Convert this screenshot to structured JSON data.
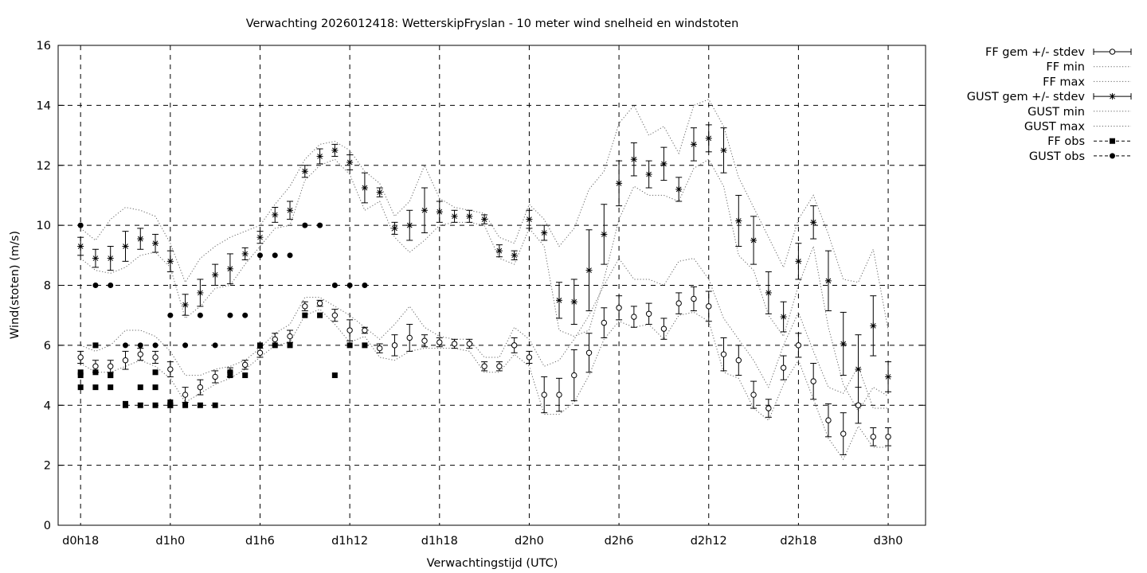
{
  "chart_data": {
    "type": "line",
    "title": "Verwachting 2026012418: WetterskipFryslan - 10 meter wind snelheid en windstoten",
    "xlabel": "Verwachtingstijd (UTC)",
    "ylabel": "Wind(stoten) (m/s)",
    "xlim": [
      -1.5,
      56.5
    ],
    "ylim": [
      0,
      16
    ],
    "y_ticks": [
      0,
      2,
      4,
      6,
      8,
      10,
      12,
      14,
      16
    ],
    "x_ticks": [
      {
        "x": 0,
        "label": "d0h18"
      },
      {
        "x": 6,
        "label": "d1h0"
      },
      {
        "x": 12,
        "label": "d1h6"
      },
      {
        "x": 18,
        "label": "d1h12"
      },
      {
        "x": 24,
        "label": "d1h18"
      },
      {
        "x": 30,
        "label": "d2h0"
      },
      {
        "x": 36,
        "label": "d2h6"
      },
      {
        "x": 42,
        "label": "d2h12"
      },
      {
        "x": 48,
        "label": "d2h18"
      },
      {
        "x": 54,
        "label": "d3h0"
      }
    ],
    "grid": true,
    "legend_position": "top-right outside",
    "legend": [
      {
        "key": "ff_mean",
        "label": "FF gem +/- stdev"
      },
      {
        "key": "ff_min",
        "label": "FF min"
      },
      {
        "key": "ff_max",
        "label": "FF max"
      },
      {
        "key": "gust_mean",
        "label": "GUST gem +/- stdev"
      },
      {
        "key": "gust_min",
        "label": "GUST min"
      },
      {
        "key": "gust_max",
        "label": "GUST max"
      },
      {
        "key": "ff_obs",
        "label": "FF obs"
      },
      {
        "key": "gust_obs",
        "label": "GUST obs"
      }
    ],
    "ff_mean": {
      "x": [
        0,
        1,
        2,
        3,
        4,
        5,
        6,
        7,
        8,
        9,
        10,
        11,
        12,
        13,
        14,
        15,
        16,
        17,
        18,
        19,
        20,
        21,
        22,
        23,
        24,
        25,
        26,
        27,
        28,
        29,
        30,
        31,
        32,
        33,
        34,
        35,
        36,
        37,
        38,
        39,
        40,
        41,
        42,
        43,
        44,
        45,
        46,
        47,
        48,
        49,
        50,
        51,
        52,
        53,
        54
      ],
      "y": [
        5.6,
        5.3,
        5.3,
        5.5,
        5.7,
        5.6,
        5.2,
        4.35,
        4.6,
        4.95,
        5.1,
        5.35,
        5.75,
        6.2,
        6.3,
        7.3,
        7.4,
        7.0,
        6.5,
        6.5,
        5.9,
        6.0,
        6.25,
        6.15,
        6.1,
        6.05,
        6.05,
        5.3,
        5.3,
        6.0,
        5.6,
        4.35,
        4.35,
        5.0,
        5.75,
        6.75,
        7.25,
        6.95,
        7.05,
        6.55,
        7.4,
        7.55,
        7.3,
        5.7,
        5.5,
        4.35,
        3.9,
        5.25,
        6.0,
        4.8,
        3.5,
        3.05,
        4.0,
        2.95,
        2.95
      ],
      "sd": [
        0.2,
        0.2,
        0.2,
        0.3,
        0.2,
        0.2,
        0.25,
        0.25,
        0.25,
        0.2,
        0.15,
        0.15,
        0.15,
        0.2,
        0.2,
        0.15,
        0.1,
        0.2,
        0.35,
        0.1,
        0.15,
        0.35,
        0.45,
        0.2,
        0.15,
        0.15,
        0.15,
        0.15,
        0.15,
        0.25,
        0.2,
        0.6,
        0.55,
        0.85,
        0.65,
        0.5,
        0.4,
        0.35,
        0.35,
        0.35,
        0.35,
        0.4,
        0.5,
        0.55,
        0.5,
        0.45,
        0.3,
        0.4,
        0.4,
        0.6,
        0.55,
        0.7,
        0.6,
        0.3,
        0.3
      ]
    },
    "ff_min": {
      "x": [
        0,
        1,
        2,
        3,
        4,
        5,
        6,
        7,
        8,
        9,
        10,
        11,
        12,
        13,
        14,
        15,
        16,
        17,
        18,
        19,
        20,
        21,
        22,
        23,
        24,
        25,
        26,
        27,
        28,
        29,
        30,
        31,
        32,
        33,
        34,
        35,
        36,
        37,
        38,
        39,
        40,
        41,
        42,
        43,
        44,
        45,
        46,
        47,
        48,
        49,
        50,
        51,
        52,
        53,
        54
      ],
      "y": [
        5.4,
        5.1,
        5.1,
        5.3,
        5.5,
        5.3,
        4.9,
        4.1,
        4.4,
        4.7,
        4.9,
        5.2,
        5.6,
        6.0,
        6.1,
        7.0,
        7.2,
        6.7,
        6.1,
        6.3,
        5.6,
        5.5,
        5.8,
        5.9,
        5.9,
        5.9,
        5.8,
        5.1,
        5.1,
        5.7,
        5.3,
        3.7,
        3.7,
        4.1,
        5.0,
        6.2,
        6.8,
        6.6,
        6.7,
        6.2,
        7.0,
        7.1,
        6.8,
        5.1,
        4.9,
        3.9,
        3.5,
        4.7,
        5.5,
        4.2,
        2.9,
        2.2,
        3.3,
        2.6,
        2.6
      ]
    },
    "ff_max": {
      "x": [
        0,
        1,
        2,
        3,
        4,
        5,
        6,
        7,
        8,
        9,
        10,
        11,
        12,
        13,
        14,
        15,
        16,
        17,
        18,
        19,
        20,
        21,
        22,
        23,
        24,
        25,
        26,
        27,
        28,
        29,
        30,
        31,
        32,
        33,
        34,
        35,
        36,
        37,
        38,
        39,
        40,
        41,
        42,
        43,
        44,
        45,
        46,
        47,
        48,
        49,
        50,
        51,
        52,
        53,
        54
      ],
      "y": [
        6.0,
        5.8,
        6.0,
        6.5,
        6.5,
        6.3,
        5.8,
        5.0,
        5.0,
        5.2,
        5.3,
        5.5,
        5.9,
        6.4,
        6.7,
        7.6,
        7.6,
        7.3,
        7.0,
        6.6,
        6.2,
        6.7,
        7.3,
        6.6,
        6.3,
        6.2,
        6.2,
        5.6,
        5.6,
        6.6,
        6.2,
        5.3,
        5.5,
        6.2,
        7.0,
        8.0,
        8.9,
        8.2,
        8.2,
        8.0,
        8.8,
        8.9,
        8.2,
        6.9,
        6.2,
        5.5,
        4.6,
        6.0,
        7.1,
        5.8,
        4.6,
        4.4,
        5.3,
        3.9,
        3.9
      ]
    },
    "gust_mean": {
      "x": [
        0,
        1,
        2,
        3,
        4,
        5,
        6,
        7,
        8,
        9,
        10,
        11,
        12,
        13,
        14,
        15,
        16,
        17,
        18,
        19,
        20,
        21,
        22,
        23,
        24,
        25,
        26,
        27,
        28,
        29,
        30,
        31,
        32,
        33,
        34,
        35,
        36,
        37,
        38,
        39,
        40,
        41,
        42,
        43,
        44,
        45,
        46,
        47,
        48,
        49,
        50,
        51,
        52,
        53,
        54
      ],
      "y": [
        9.3,
        8.9,
        8.9,
        9.3,
        9.55,
        9.4,
        8.8,
        7.35,
        7.75,
        8.35,
        8.55,
        9.05,
        9.6,
        10.35,
        10.5,
        11.8,
        12.3,
        12.5,
        12.1,
        11.25,
        11.1,
        9.9,
        10.0,
        10.5,
        10.45,
        10.3,
        10.3,
        10.2,
        9.15,
        9.0,
        10.2,
        9.75,
        7.5,
        7.45,
        8.5,
        9.7,
        11.4,
        12.2,
        11.7,
        12.05,
        11.2,
        12.7,
        12.9,
        12.5,
        10.15,
        9.5,
        7.75,
        6.95,
        8.8,
        10.1,
        8.15,
        6.05,
        5.2,
        6.65,
        4.95
      ],
      "sd": [
        0.3,
        0.3,
        0.4,
        0.5,
        0.35,
        0.3,
        0.35,
        0.35,
        0.45,
        0.35,
        0.5,
        0.2,
        0.2,
        0.25,
        0.3,
        0.2,
        0.25,
        0.2,
        0.25,
        0.5,
        0.15,
        0.2,
        0.5,
        0.75,
        0.35,
        0.2,
        0.2,
        0.15,
        0.2,
        0.15,
        0.3,
        0.25,
        0.6,
        0.75,
        1.35,
        1.0,
        0.75,
        0.55,
        0.45,
        0.55,
        0.4,
        0.55,
        0.45,
        0.75,
        0.85,
        0.8,
        0.7,
        0.5,
        0.6,
        0.55,
        1.0,
        1.05,
        1.15,
        1.0,
        0.5
      ]
    },
    "gust_min": {
      "x": [
        0,
        1,
        2,
        3,
        4,
        5,
        6,
        7,
        8,
        9,
        10,
        11,
        12,
        13,
        14,
        15,
        16,
        17,
        18,
        19,
        20,
        21,
        22,
        23,
        24,
        25,
        26,
        27,
        28,
        29,
        30,
        31,
        32,
        33,
        34,
        35,
        36,
        37,
        38,
        39,
        40,
        41,
        42,
        43,
        44,
        45,
        46,
        47,
        48,
        49,
        50,
        51,
        52,
        53,
        54
      ],
      "y": [
        8.9,
        8.5,
        8.4,
        8.6,
        9.0,
        9.1,
        8.6,
        6.9,
        7.3,
        7.9,
        8.0,
        8.7,
        9.3,
        9.9,
        10.0,
        11.5,
        12.0,
        12.2,
        11.7,
        10.5,
        10.8,
        9.6,
        9.1,
        9.5,
        10.0,
        10.1,
        10.1,
        10.0,
        8.9,
        8.7,
        9.9,
        9.3,
        6.5,
        6.3,
        6.5,
        8.2,
        10.2,
        11.3,
        11.0,
        11.0,
        10.8,
        11.9,
        12.2,
        11.3,
        9.0,
        8.5,
        7.0,
        6.3,
        8.0,
        9.3,
        6.6,
        4.7,
        3.8,
        4.6,
        4.3
      ]
    },
    "gust_max": {
      "x": [
        0,
        1,
        2,
        3,
        4,
        5,
        6,
        7,
        8,
        9,
        10,
        11,
        12,
        13,
        14,
        15,
        16,
        17,
        18,
        19,
        20,
        21,
        22,
        23,
        24,
        25,
        26,
        27,
        28,
        29,
        30,
        31,
        32,
        33,
        34,
        35,
        36,
        37,
        38,
        39,
        40,
        41,
        42,
        43,
        44,
        45,
        46,
        47,
        48,
        49,
        50,
        51,
        52,
        53,
        54
      ],
      "y": [
        9.9,
        9.5,
        10.2,
        10.6,
        10.5,
        10.3,
        9.4,
        8.1,
        8.9,
        9.3,
        9.6,
        9.8,
        10.0,
        10.7,
        11.3,
        12.2,
        12.7,
        12.8,
        12.5,
        11.8,
        11.4,
        10.3,
        10.8,
        12.0,
        10.9,
        10.6,
        10.5,
        10.4,
        9.6,
        9.4,
        10.7,
        10.2,
        9.3,
        9.9,
        11.2,
        11.8,
        13.4,
        14.0,
        13.0,
        13.3,
        12.4,
        14.0,
        14.2,
        13.3,
        11.6,
        10.6,
        9.6,
        8.6,
        10.2,
        11.0,
        9.7,
        8.2,
        8.1,
        9.2,
        6.5
      ]
    },
    "ff_obs": {
      "x": [
        0,
        0,
        0,
        1,
        1,
        1,
        2,
        2,
        2,
        3,
        3,
        4,
        4,
        5,
        5,
        5,
        6,
        6,
        6,
        7,
        8,
        9,
        10,
        10,
        11,
        12,
        13,
        14,
        15,
        16,
        17,
        18,
        19
      ],
      "y": [
        5.0,
        5.1,
        4.6,
        6.0,
        5.1,
        4.6,
        5.0,
        4.6,
        5.0,
        4.0,
        4.05,
        4.6,
        4.0,
        5.1,
        4.6,
        4.0,
        4.0,
        4.1,
        4.0,
        4.0,
        4.0,
        4.0,
        5.0,
        5.1,
        5.0,
        6.0,
        6.0,
        6.0,
        7.0,
        7.0,
        5.0,
        6.0,
        6.0
      ]
    },
    "gust_obs": {
      "x": [
        0,
        1,
        2,
        3,
        4,
        5,
        6,
        7,
        8,
        9,
        10,
        11,
        12,
        13,
        14,
        15,
        16,
        17,
        18,
        19
      ],
      "y": [
        10.0,
        8.0,
        8.0,
        6.0,
        6.0,
        6.0,
        7.0,
        6.0,
        7.0,
        6.0,
        7.0,
        7.0,
        9.0,
        9.0,
        9.0,
        10.0,
        10.0,
        8.0,
        8.0,
        8.0
      ]
    }
  }
}
